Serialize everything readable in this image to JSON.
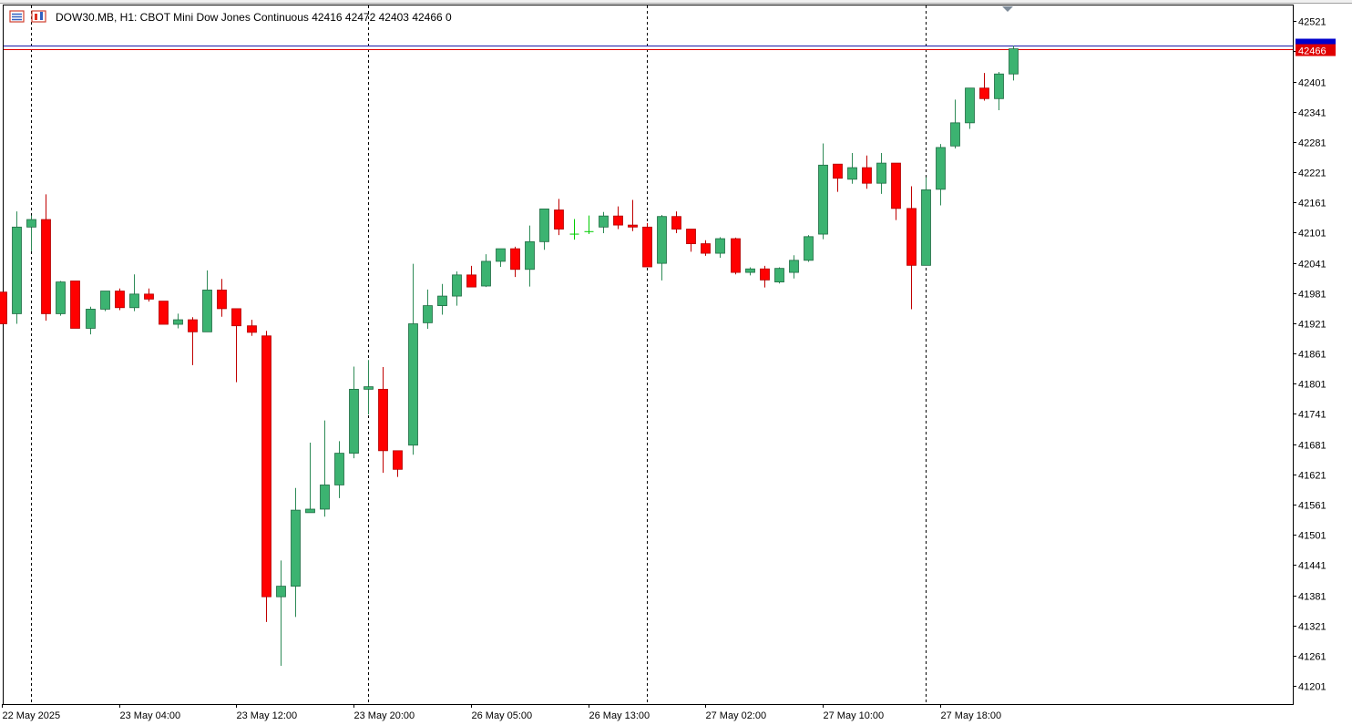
{
  "header": {
    "symbol_text": "DOW30.MB, H1:  CBOT Mini Dow Jones Continuous  42416 42472 42403 42466  0",
    "menu_icon": "list-window-icon",
    "chart_icon": "chart-window-icon"
  },
  "colors": {
    "bull": "#3cb371",
    "bear": "#ff0000",
    "doji": "#00cc00",
    "ask_line": "#1a1aa8",
    "bid_line": "#e00000",
    "ask_label": "#0000cc",
    "bid_label": "#e00000",
    "grid_separator": "#000000",
    "frame": "#000000"
  },
  "price_labels": {
    "bid": "42466"
  },
  "chart_data": {
    "type": "candlestick",
    "title": "DOW30.MB, H1:  CBOT Mini Dow Jones Continuous",
    "timeframe": "H1",
    "last_ohlc": {
      "open": 42416,
      "high": 42472,
      "low": 42403,
      "close": 42466
    },
    "ylim": [
      41165,
      42552
    ],
    "y_ticks": [
      "42521",
      "42461",
      "42401",
      "42341",
      "42281",
      "42221",
      "42161",
      "42101",
      "42041",
      "41981",
      "41921",
      "41861",
      "41801",
      "41741",
      "41681",
      "41621",
      "41561",
      "41501",
      "41441",
      "41381",
      "41321",
      "41261",
      "41201"
    ],
    "x_ticks": [
      "22 May 2025",
      "23 May 04:00",
      "23 May 12:00",
      "23 May 20:00",
      "26 May 05:00",
      "26 May 13:00",
      "27 May 02:00",
      "27 May 10:00",
      "27 May 18:00"
    ],
    "period_separators": [
      2,
      25,
      44,
      63
    ],
    "bid": 42466,
    "ask": 42472,
    "ohlc": [
      [
        41983,
        41983,
        41920,
        41920
      ],
      [
        41940,
        42143,
        41920,
        42112
      ],
      [
        42112,
        42135,
        42064,
        42127
      ],
      [
        42127,
        42177,
        41926,
        41940
      ],
      [
        41940,
        42005,
        41936,
        42003
      ],
      [
        42005,
        42005,
        41913,
        41911
      ],
      [
        41911,
        41954,
        41899,
        41949
      ],
      [
        41949,
        41985,
        41945,
        41985
      ],
      [
        41985,
        41990,
        41947,
        41952
      ],
      [
        41952,
        42018,
        41945,
        41979
      ],
      [
        41979,
        41990,
        41964,
        41969
      ],
      [
        41965,
        41965,
        41922,
        41919
      ],
      [
        41919,
        41940,
        41911,
        41928
      ],
      [
        41928,
        41933,
        41838,
        41904
      ],
      [
        41904,
        42026,
        41904,
        41987
      ],
      [
        41987,
        42009,
        41934,
        41950
      ],
      [
        41950,
        41950,
        41804,
        41916
      ],
      [
        41916,
        41928,
        41896,
        41903
      ],
      [
        41896,
        41906,
        41328,
        41378
      ],
      [
        41378,
        41450,
        41241,
        41399
      ],
      [
        41399,
        41594,
        41338,
        41550
      ],
      [
        41545,
        41684,
        41545,
        41552
      ],
      [
        41552,
        41728,
        41537,
        41600
      ],
      [
        41600,
        41687,
        41574,
        41663
      ],
      [
        41663,
        41835,
        41653,
        41790
      ],
      [
        41790,
        41848,
        41740,
        41795
      ],
      [
        41790,
        41834,
        41624,
        41668
      ],
      [
        41668,
        41668,
        41616,
        41631
      ],
      [
        41679,
        42039,
        41660,
        41920
      ],
      [
        41922,
        41988,
        41910,
        41956
      ],
      [
        41956,
        41999,
        41938,
        41975
      ],
      [
        41975,
        42024,
        41956,
        42017
      ],
      [
        42017,
        42035,
        41995,
        41993
      ],
      [
        41995,
        42058,
        41993,
        42044
      ],
      [
        42044,
        42066,
        42033,
        42069
      ],
      [
        42069,
        42073,
        42013,
        42028
      ],
      [
        42028,
        42115,
        41994,
        42083
      ],
      [
        42083,
        42146,
        42067,
        42148
      ],
      [
        42146,
        42168,
        42096,
        42108
      ],
      [
        42098,
        42128,
        42087,
        42098
      ],
      [
        42103,
        42135,
        42098,
        42103
      ],
      [
        42112,
        42142,
        42100,
        42134
      ],
      [
        42134,
        42153,
        42108,
        42116
      ],
      [
        42116,
        42166,
        42104,
        42112
      ],
      [
        42112,
        42120,
        42037,
        42033
      ],
      [
        42040,
        42136,
        42006,
        42133
      ],
      [
        42133,
        42143,
        42100,
        42108
      ],
      [
        42108,
        42108,
        42063,
        42079
      ],
      [
        42079,
        42086,
        42055,
        42060
      ],
      [
        42060,
        42092,
        42051,
        42089
      ],
      [
        42089,
        42091,
        42018,
        42022
      ],
      [
        42022,
        42032,
        42016,
        42029
      ],
      [
        42029,
        42035,
        41992,
        42007
      ],
      [
        42003,
        42032,
        42000,
        42030
      ],
      [
        42022,
        42056,
        42010,
        42046
      ],
      [
        42046,
        42096,
        42043,
        42093
      ],
      [
        42098,
        42278,
        42088,
        42235
      ],
      [
        42237,
        42237,
        42182,
        42209
      ],
      [
        42207,
        42259,
        42198,
        42230
      ],
      [
        42230,
        42254,
        42188,
        42199
      ],
      [
        42199,
        42259,
        42178,
        42239
      ],
      [
        42239,
        42239,
        42126,
        42149
      ],
      [
        42149,
        42193,
        41949,
        42036
      ],
      [
        42036,
        42211,
        42036,
        42186
      ],
      [
        42187,
        42277,
        42155,
        42270
      ],
      [
        42273,
        42365,
        42268,
        42319
      ],
      [
        42319,
        42384,
        42307,
        42388
      ],
      [
        42388,
        42418,
        42363,
        42367
      ],
      [
        42367,
        42420,
        42344,
        42416
      ],
      [
        42416,
        42472,
        42403,
        42466
      ]
    ]
  }
}
